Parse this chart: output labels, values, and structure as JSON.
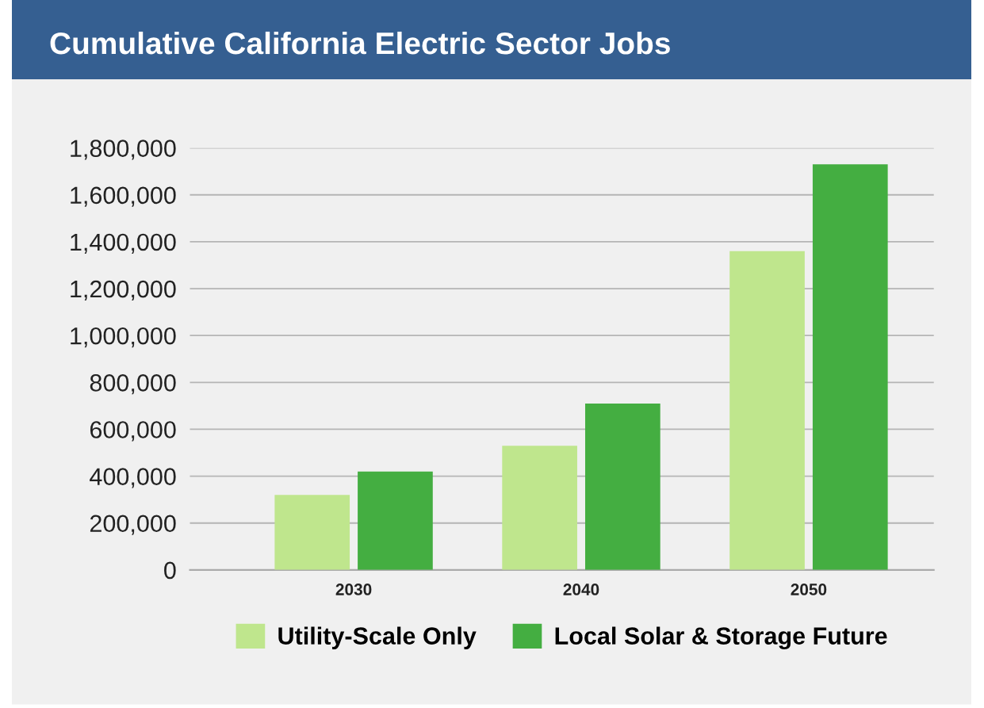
{
  "chart_data": {
    "type": "bar",
    "title": "Cumulative California Electric Sector Jobs",
    "categories": [
      "2030",
      "2040",
      "2050"
    ],
    "series": [
      {
        "name": "Utility-Scale Only",
        "color": "#bfe68d",
        "values": [
          320000,
          530000,
          1360000
        ]
      },
      {
        "name": "Local Solar & Storage Future",
        "color": "#44ae41",
        "values": [
          420000,
          710000,
          1730000
        ]
      }
    ],
    "ylim": [
      0,
      1800000
    ],
    "yticks": [
      {
        "value": 0,
        "label": "0"
      },
      {
        "value": 200000,
        "label": "200,000"
      },
      {
        "value": 400000,
        "label": "400,000"
      },
      {
        "value": 600000,
        "label": "600,000"
      },
      {
        "value": 800000,
        "label": "800,000"
      },
      {
        "value": 1000000,
        "label": "1,000,000"
      },
      {
        "value": 1200000,
        "label": "1,200,000"
      },
      {
        "value": 1400000,
        "label": "1,400,000"
      },
      {
        "value": 1600000,
        "label": "1,600,000"
      },
      {
        "value": 1800000,
        "label": "1,800,000"
      }
    ],
    "grid": "y",
    "legend": "bottom"
  }
}
